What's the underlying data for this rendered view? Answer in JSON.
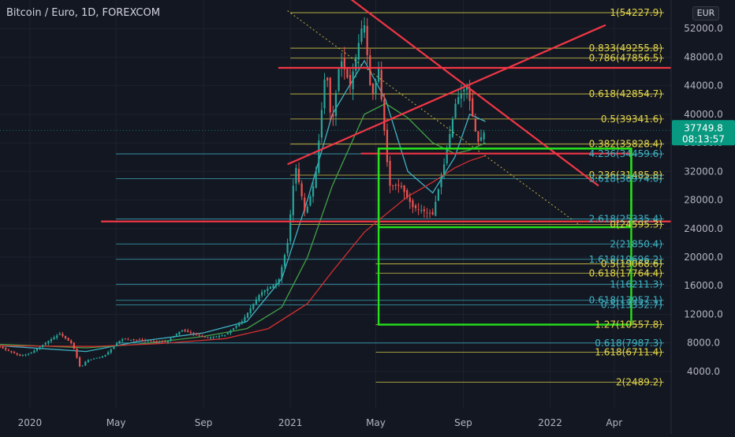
{
  "header": {
    "symbol_title": "Bitcoin / Euro, 1D, FOREXCOM",
    "currency": "EUR"
  },
  "colors": {
    "background": "#131722",
    "axis_text": "#b2b5be",
    "grid": "#1e222d",
    "fib_yellow": "#e6d84a",
    "fib_cyan": "#3fb3c4",
    "trend_red": "#f23645",
    "box_green": "#26e01a",
    "candle_up": "#26a69a",
    "candle_down": "#ef5350",
    "ma_fast": "#3fb3c4",
    "ma_mid": "#43a047",
    "ma_slow": "#d32f2f",
    "price_tag": "#089981"
  },
  "chart_data": {
    "type": "candlestick",
    "title": "Bitcoin / Euro, 1D, FOREXCOM",
    "x_ticks": [
      "2020",
      "May",
      "Sep",
      "2021",
      "May",
      "Sep",
      "2022",
      "Apr"
    ],
    "x_tick_dates": [
      "2020-01-01",
      "2020-05-01",
      "2020-09-01",
      "2021-01-01",
      "2021-05-01",
      "2021-09-01",
      "2022-01-01",
      "2022-04-01"
    ],
    "y_ticks": [
      "4000.0",
      "8000.0",
      "12000.0",
      "16000.0",
      "20000.0",
      "24000.0",
      "28000.0",
      "32000.0",
      "36000.0",
      "40000.0",
      "44000.0",
      "48000.0",
      "52000.0"
    ],
    "y_tick_values": [
      4000,
      8000,
      12000,
      16000,
      20000,
      24000,
      28000,
      32000,
      36000,
      40000,
      44000,
      48000,
      52000
    ],
    "y_range": [
      -1200,
      56000
    ],
    "x_range": [
      "2019-11-20",
      "2022-06-20"
    ],
    "current_price": {
      "value": 37749.8,
      "label": "37749.8",
      "countdown": "08:13:57"
    },
    "price_curve": [
      [
        "2019-11-20",
        7400
      ],
      [
        "2019-12-18",
        6200
      ],
      [
        "2020-01-01",
        6500
      ],
      [
        "2020-01-20",
        7800
      ],
      [
        "2020-02-12",
        9300
      ],
      [
        "2020-03-01",
        7800
      ],
      [
        "2020-03-12",
        4400
      ],
      [
        "2020-03-20",
        5500
      ],
      [
        "2020-04-15",
        6200
      ],
      [
        "2020-05-08",
        8500
      ],
      [
        "2020-06-01",
        8400
      ],
      [
        "2020-07-10",
        8100
      ],
      [
        "2020-08-01",
        9800
      ],
      [
        "2020-09-05",
        8700
      ],
      [
        "2020-10-01",
        9100
      ],
      [
        "2020-10-25",
        11000
      ],
      [
        "2020-11-20",
        15000
      ],
      [
        "2020-12-15",
        16500
      ],
      [
        "2020-12-28",
        22000
      ],
      [
        "2021-01-08",
        33000
      ],
      [
        "2021-01-22",
        26000
      ],
      [
        "2021-02-05",
        31000
      ],
      [
        "2021-02-20",
        47000
      ],
      [
        "2021-02-28",
        38000
      ],
      [
        "2021-03-12",
        48000
      ],
      [
        "2021-03-26",
        44000
      ],
      [
        "2021-04-14",
        53500
      ],
      [
        "2021-04-25",
        42000
      ],
      [
        "2021-05-05",
        46500
      ],
      [
        "2021-05-20",
        30000
      ],
      [
        "2021-06-05",
        30000
      ],
      [
        "2021-06-22",
        27000
      ],
      [
        "2021-07-20",
        26000
      ],
      [
        "2021-08-05",
        33000
      ],
      [
        "2021-08-22",
        42000
      ],
      [
        "2021-09-06",
        44000
      ],
      [
        "2021-09-21",
        36000
      ],
      [
        "2021-10-02",
        37749.8
      ]
    ],
    "moving_averages": [
      {
        "color_key": "ma_fast",
        "points": [
          [
            "2019-11-20",
            7600
          ],
          [
            "2020-03-20",
            6800
          ],
          [
            "2020-06-01",
            8200
          ],
          [
            "2020-09-01",
            9400
          ],
          [
            "2020-11-01",
            11000
          ],
          [
            "2020-12-20",
            17000
          ],
          [
            "2021-01-25",
            28000
          ],
          [
            "2021-03-01",
            40000
          ],
          [
            "2021-04-15",
            47500
          ],
          [
            "2021-05-15",
            42000
          ],
          [
            "2021-06-15",
            32000
          ],
          [
            "2021-07-20",
            29000
          ],
          [
            "2021-08-20",
            34000
          ],
          [
            "2021-09-10",
            40000
          ],
          [
            "2021-10-02",
            39000
          ]
        ]
      },
      {
        "color_key": "ma_mid",
        "points": [
          [
            "2019-11-20",
            7800
          ],
          [
            "2020-03-20",
            7300
          ],
          [
            "2020-06-01",
            7800
          ],
          [
            "2020-09-01",
            8900
          ],
          [
            "2020-11-01",
            10000
          ],
          [
            "2020-12-20",
            13000
          ],
          [
            "2021-01-25",
            20000
          ],
          [
            "2021-03-01",
            30000
          ],
          [
            "2021-04-15",
            40000
          ],
          [
            "2021-05-15",
            41500
          ],
          [
            "2021-06-15",
            39500
          ],
          [
            "2021-07-20",
            36000
          ],
          [
            "2021-08-20",
            34500
          ],
          [
            "2021-09-10",
            35000
          ],
          [
            "2021-10-02",
            36000
          ]
        ]
      },
      {
        "color_key": "ma_slow",
        "points": [
          [
            "2019-11-20",
            7600
          ],
          [
            "2020-04-01",
            7500
          ],
          [
            "2020-07-01",
            7900
          ],
          [
            "2020-10-01",
            8600
          ],
          [
            "2020-12-01",
            10000
          ],
          [
            "2021-01-25",
            13500
          ],
          [
            "2021-03-01",
            18000
          ],
          [
            "2021-04-15",
            23500
          ],
          [
            "2021-05-15",
            26000
          ],
          [
            "2021-06-15",
            28500
          ],
          [
            "2021-07-20",
            30500
          ],
          [
            "2021-08-20",
            32500
          ],
          [
            "2021-09-10",
            33500
          ],
          [
            "2021-10-02",
            34200
          ]
        ]
      }
    ],
    "fib_levels": [
      {
        "ratio": "1",
        "value": 54227.9,
        "label": "1(54227.9)",
        "color_key": "fib_yellow",
        "start": "2021-01-01"
      },
      {
        "ratio": "0.833",
        "value": 49255.8,
        "label": "0.833(49255.8)",
        "color_key": "fib_yellow",
        "start": "2021-01-01"
      },
      {
        "ratio": "0.786",
        "value": 47856.5,
        "label": "0.786(47856.5)",
        "color_key": "fib_yellow",
        "start": "2021-01-01"
      },
      {
        "ratio": "0.618",
        "value": 42854.7,
        "label": "0.618(42854.7)",
        "color_key": "fib_yellow",
        "start": "2021-01-01"
      },
      {
        "ratio": "0.5",
        "value": 39341.6,
        "label": "0.5(39341.6)",
        "color_key": "fib_yellow",
        "start": "2021-01-01"
      },
      {
        "ratio": "0.382",
        "value": 35828.4,
        "label": "0.382(35828.4)",
        "color_key": "fib_yellow",
        "start": "2021-01-01"
      },
      {
        "ratio": "4.236",
        "value": 34459.6,
        "label": "4.236(34459.6)",
        "color_key": "fib_cyan",
        "start": "2020-05-01"
      },
      {
        "ratio": "0.236",
        "value": 31485.8,
        "label": "0.236(31485.8)",
        "color_key": "fib_yellow",
        "start": "2021-01-01"
      },
      {
        "ratio": "3.618",
        "value": 30974.0,
        "label": "3.618(30974.0)",
        "color_key": "fib_cyan",
        "start": "2020-05-01"
      },
      {
        "ratio": "2.618",
        "value": 25335.4,
        "label": "2.618(25335.4)",
        "color_key": "fib_cyan",
        "start": "2020-05-01"
      },
      {
        "ratio": "0",
        "value": 24595.3,
        "label": "0(24595.3)",
        "color_key": "fib_yellow",
        "start": "2021-01-01"
      },
      {
        "ratio": "2",
        "value": 21850.4,
        "label": "2(21850.4)",
        "color_key": "fib_cyan",
        "start": "2020-05-01"
      },
      {
        "ratio": "1.618",
        "value": 19696.2,
        "label": "1.618(19696.2)",
        "color_key": "fib_cyan",
        "start": "2020-05-01"
      },
      {
        "ratio": "0.5",
        "value": 19068.6,
        "label": "0.5(19068.6)",
        "color_key": "fib_yellow",
        "start": "2021-05-01"
      },
      {
        "ratio": "0.618",
        "value": 17764.4,
        "label": "0.618(17764.4)",
        "color_key": "fib_yellow",
        "start": "2021-05-01"
      },
      {
        "ratio": "1",
        "value": 16211.3,
        "label": "1(16211.3)",
        "color_key": "fib_cyan",
        "start": "2020-05-01"
      },
      {
        "ratio": "0.618",
        "value": 13957.1,
        "label": "0.618(13957.1)",
        "color_key": "fib_cyan",
        "start": "2020-05-01"
      },
      {
        "ratio": "0.5",
        "value": 13332.7,
        "label": "0.5(13332.7)",
        "color_key": "fib_cyan",
        "start": "2020-05-01"
      },
      {
        "ratio": "1.27",
        "value": 10557.8,
        "label": "1.27(10557.8)",
        "color_key": "fib_yellow",
        "start": "2021-05-01"
      },
      {
        "ratio": "0.618",
        "value": 7987.3,
        "label": "0.618(7987.3)",
        "color_key": "fib_cyan",
        "start": "2020-05-01"
      },
      {
        "ratio": "1.618",
        "value": 6711.4,
        "label": "1.618(6711.4)",
        "color_key": "fib_yellow",
        "start": "2021-05-01"
      },
      {
        "ratio": "2",
        "value": 2489.2,
        "label": "2(2489.2)",
        "color_key": "fib_yellow",
        "start": "2021-05-01"
      }
    ],
    "trend_lines": [
      {
        "from": [
          "2021-03-02",
          58000
        ],
        "to": [
          "2022-03-10",
          30000
        ]
      },
      {
        "from": [
          "2020-12-28",
          33000
        ],
        "to": [
          "2022-03-20",
          52500
        ]
      },
      {
        "from": [
          "2020-12-15",
          46500
        ],
        "to": [
          "2022-06-20",
          46500
        ]
      },
      {
        "from": [
          "2020-04-10",
          25000
        ],
        "to": [
          "2022-06-20",
          25000
        ]
      },
      {
        "from": [
          "2021-04-10",
          34500
        ],
        "to": [
          "2022-04-25",
          34500
        ]
      }
    ],
    "dotted_trend": {
      "from": [
        "2020-12-28",
        54500
      ],
      "to": [
        "2022-02-10",
        24600
      ]
    },
    "green_box_1": {
      "x0": "2021-05-05",
      "x1": "2022-04-25",
      "y_top": 35200,
      "y_bottom": 24200
    },
    "green_box_2": {
      "x0": "2021-05-05",
      "x1": "2022-04-25",
      "y_top": 35200,
      "y_bottom": 10557.8
    }
  }
}
